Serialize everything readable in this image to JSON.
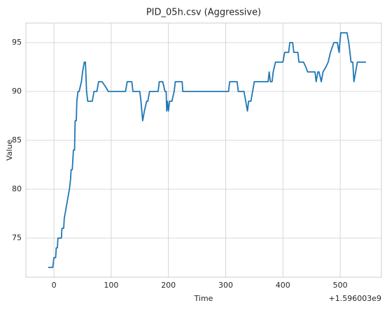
{
  "chart_data": {
    "type": "line",
    "title": "PID_05h.csv (Aggressive)",
    "x_label": "Time",
    "y_label": "Value",
    "x_offset_label": "+1.596003e9",
    "x": [
      -10,
      -2,
      0,
      3,
      4,
      6,
      7,
      10,
      13,
      14,
      17,
      18,
      21,
      24,
      27,
      29,
      30,
      32,
      34,
      36,
      37,
      39,
      40,
      42,
      44,
      46,
      48,
      50,
      53,
      55,
      57,
      59,
      62,
      67,
      70,
      75,
      78,
      84,
      90,
      95,
      125,
      128,
      136,
      138,
      150,
      152,
      155,
      158,
      162,
      164,
      167,
      182,
      184,
      190,
      194,
      196,
      197,
      198,
      200,
      202,
      206,
      210,
      212,
      224,
      225,
      305,
      307,
      320,
      322,
      332,
      335,
      338,
      340,
      344,
      347,
      350,
      374,
      376,
      378,
      381,
      383,
      387,
      400,
      403,
      410,
      412,
      417,
      419,
      426,
      428,
      436,
      440,
      443,
      456,
      458,
      461,
      463,
      467,
      470,
      475,
      479,
      483,
      489,
      495,
      498,
      501,
      512,
      515,
      517,
      519,
      522,
      524,
      527,
      530,
      545
    ],
    "values": [
      72,
      72,
      73,
      73,
      74,
      74,
      75,
      75,
      75,
      76,
      76,
      77,
      78,
      79,
      80,
      81,
      82,
      82,
      84,
      84,
      87,
      87,
      89,
      90,
      90,
      90.5,
      91,
      92,
      93,
      93,
      90,
      89,
      89,
      89,
      90,
      90,
      91,
      91,
      90.5,
      90,
      90,
      91,
      91,
      90,
      90,
      89,
      87,
      88,
      89,
      89,
      90,
      90,
      91,
      91,
      90,
      90,
      88,
      89,
      88,
      89,
      89,
      90,
      91,
      91,
      90,
      90,
      91,
      91,
      90,
      90,
      89,
      88,
      89,
      89,
      90,
      91,
      91,
      92,
      91,
      91,
      92,
      93,
      93,
      94,
      94,
      95,
      95,
      94,
      94,
      93,
      93,
      92.5,
      92,
      92,
      91,
      92,
      92,
      91,
      92,
      92.5,
      93,
      94,
      95,
      95,
      94,
      96,
      96,
      95,
      94,
      93,
      93,
      91,
      92,
      93,
      93
    ],
    "color": "#1f77b4",
    "xlim": [
      -49,
      572
    ],
    "xticks": [
      0,
      100,
      200,
      300,
      400,
      500
    ],
    "ylim": [
      71,
      97
    ],
    "yticks": [
      75,
      80,
      85,
      90,
      95
    ],
    "grid": true
  }
}
